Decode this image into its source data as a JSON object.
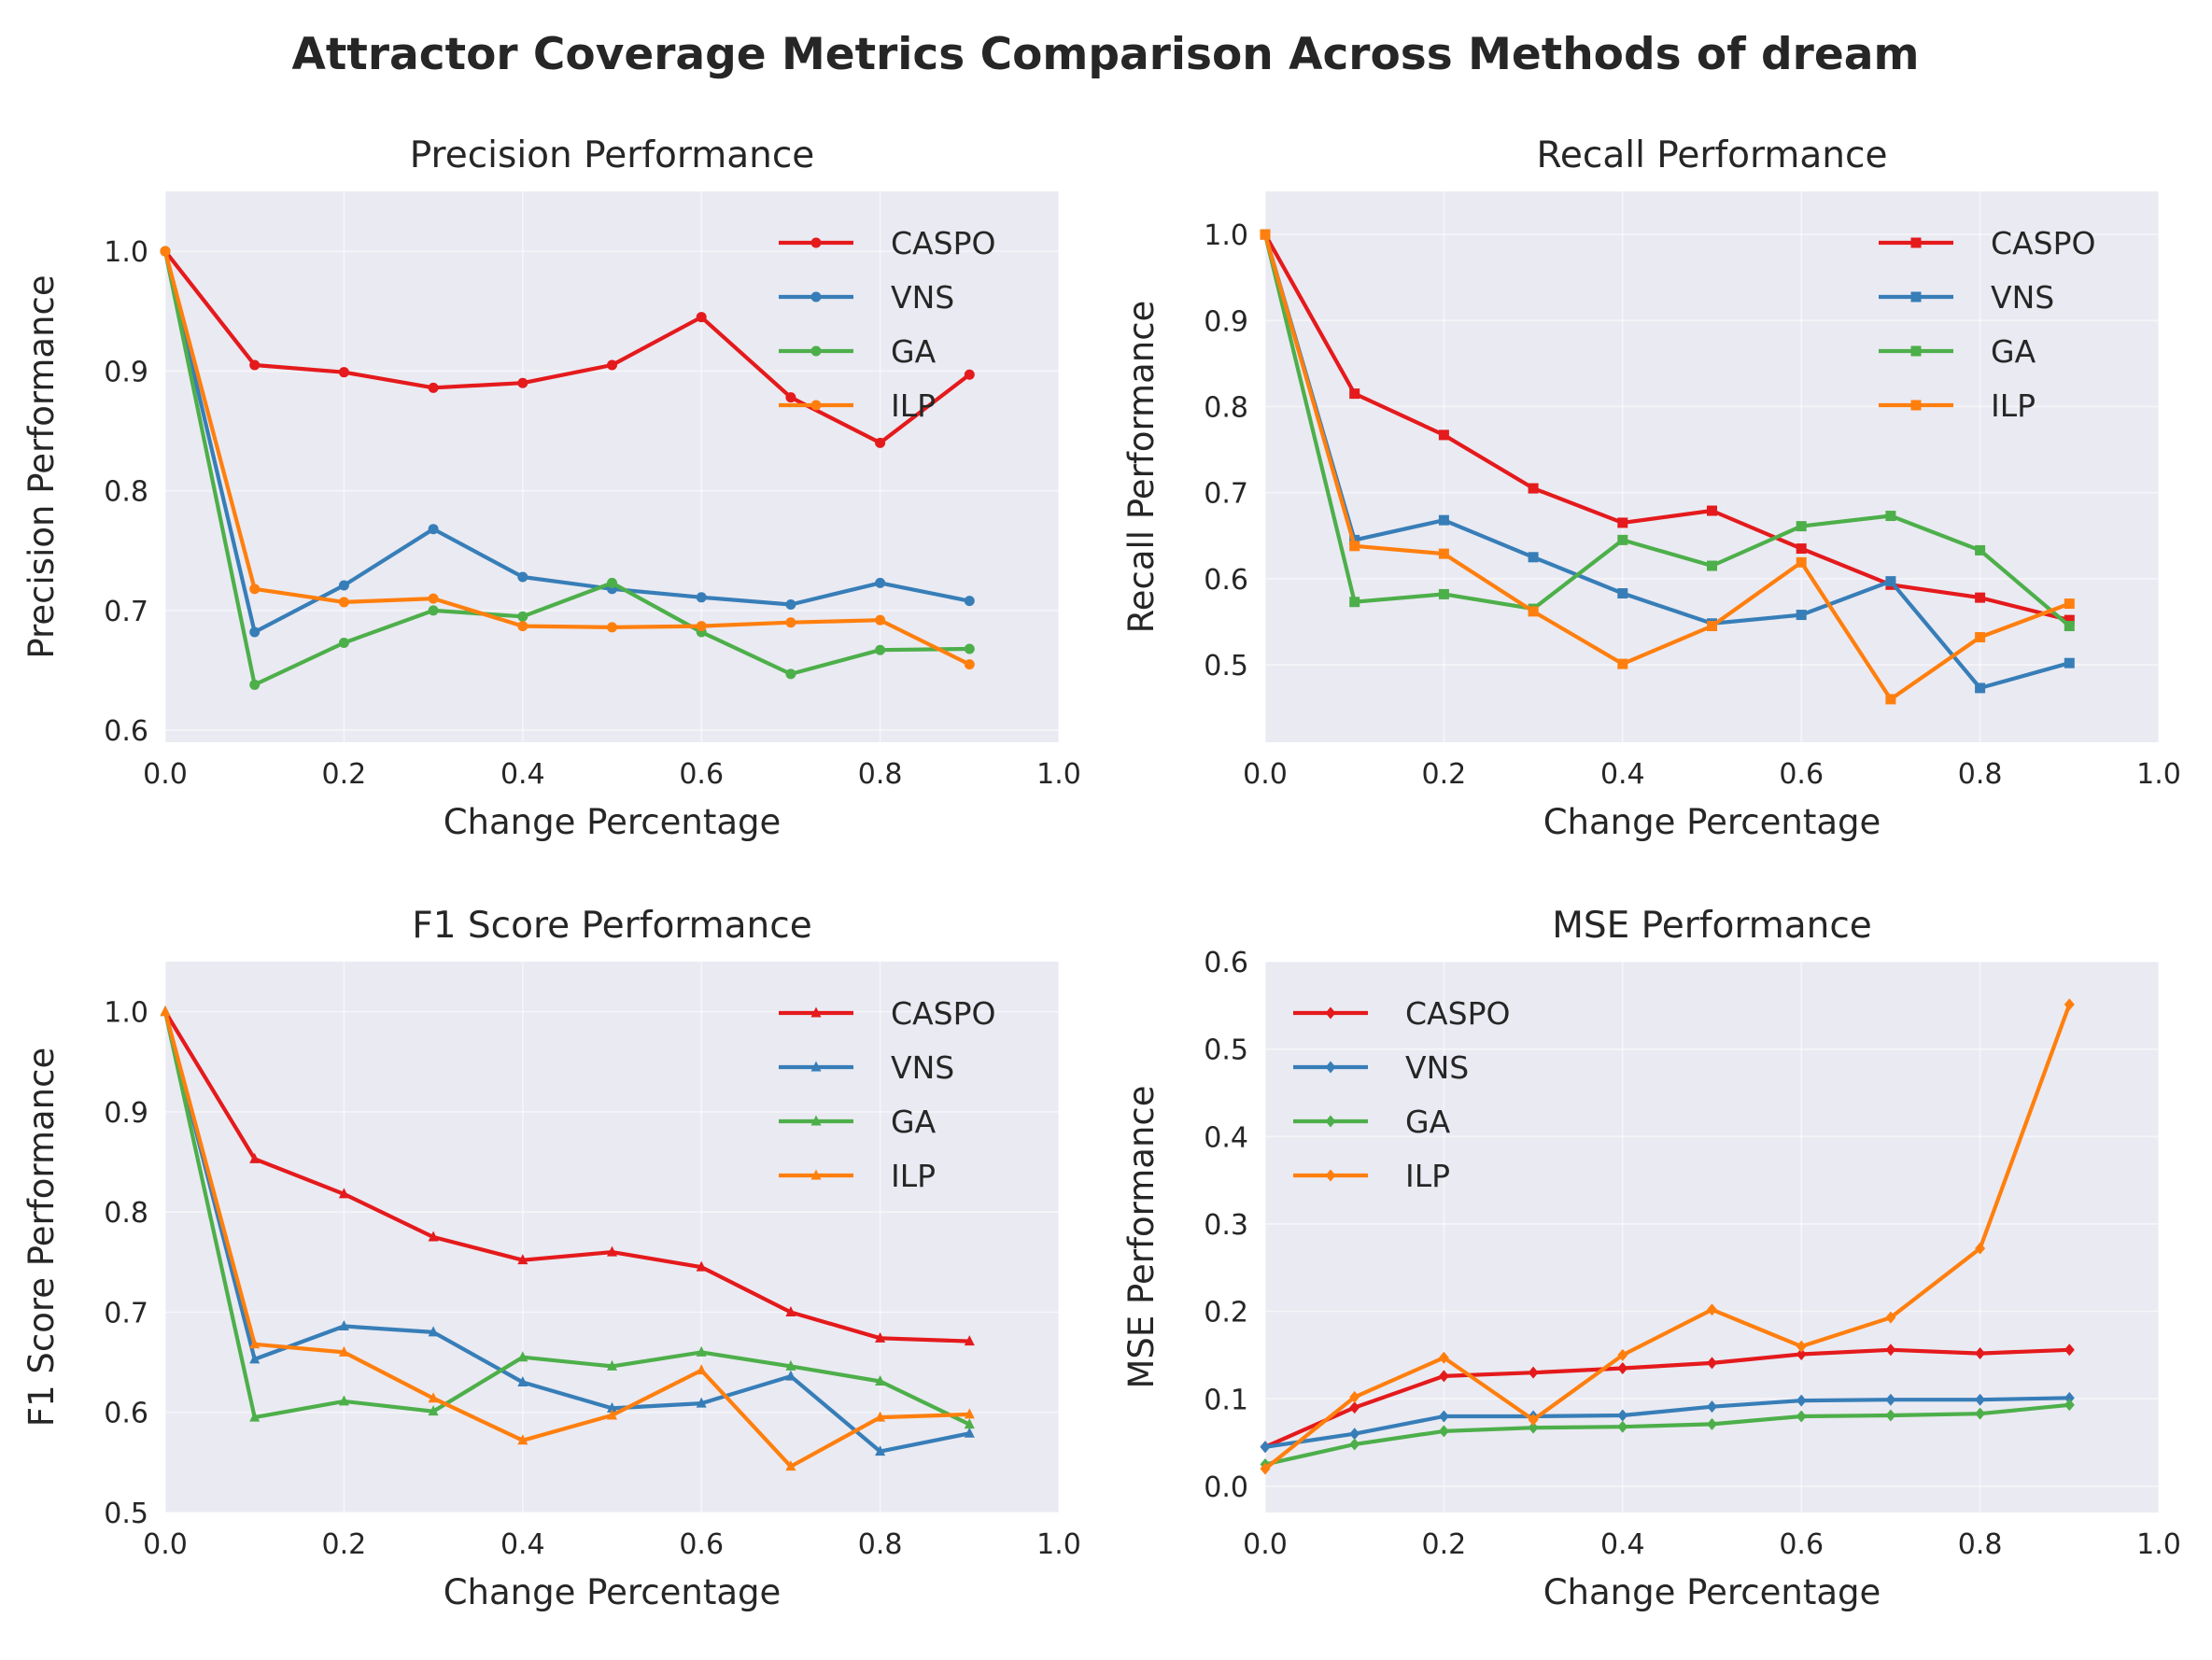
{
  "title": "Attractor Coverage Metrics Comparison Across Methods of dream",
  "colors": {
    "CASPO": "#e41a1c",
    "VNS": "#377eb8",
    "GA": "#4daf4a",
    "ILP": "#ff7f0e"
  },
  "chart_data": [
    {
      "type": "line",
      "title": "Precision Performance",
      "xlabel": "Change Percentage",
      "ylabel": "Precision Performance",
      "marker": "circle",
      "legend": "top-right",
      "grid": true,
      "xlim": [
        0,
        1.0
      ],
      "ylim": [
        0.59,
        1.05
      ],
      "xticks": [
        "0.0",
        "0.2",
        "0.4",
        "0.6",
        "0.8",
        "1.0"
      ],
      "yticks": [
        "0.6",
        "0.7",
        "0.8",
        "0.9",
        "1.0"
      ],
      "x": [
        0.0,
        0.1,
        0.2,
        0.3,
        0.4,
        0.5,
        0.6,
        0.7,
        0.8,
        0.9
      ],
      "series": [
        {
          "name": "CASPO",
          "values": [
            1.0,
            0.905,
            0.899,
            0.886,
            0.89,
            0.905,
            0.945,
            0.878,
            0.84,
            0.897
          ]
        },
        {
          "name": "VNS",
          "values": [
            1.0,
            0.682,
            0.721,
            0.768,
            0.728,
            0.718,
            0.711,
            0.705,
            0.723,
            0.708
          ]
        },
        {
          "name": "GA",
          "values": [
            1.0,
            0.638,
            0.673,
            0.7,
            0.695,
            0.723,
            0.682,
            0.647,
            0.667,
            0.668
          ]
        },
        {
          "name": "ILP",
          "values": [
            1.0,
            0.718,
            0.707,
            0.71,
            0.687,
            0.686,
            0.687,
            0.69,
            0.692,
            0.655
          ]
        }
      ]
    },
    {
      "type": "line",
      "title": "Recall Performance",
      "xlabel": "Change Percentage",
      "ylabel": "Recall Performance",
      "marker": "square",
      "legend": "top-right",
      "grid": true,
      "xlim": [
        0,
        1.0
      ],
      "ylim": [
        0.41,
        1.05
      ],
      "xticks": [
        "0.0",
        "0.2",
        "0.4",
        "0.6",
        "0.8",
        "1.0"
      ],
      "yticks": [
        "0.5",
        "0.6",
        "0.7",
        "0.8",
        "0.9",
        "1.0"
      ],
      "x": [
        0.0,
        0.1,
        0.2,
        0.3,
        0.4,
        0.5,
        0.6,
        0.7,
        0.8,
        0.9
      ],
      "series": [
        {
          "name": "CASPO",
          "values": [
            1.0,
            0.815,
            0.767,
            0.705,
            0.665,
            0.679,
            0.635,
            0.593,
            0.578,
            0.552
          ]
        },
        {
          "name": "VNS",
          "values": [
            1.0,
            0.645,
            0.668,
            0.625,
            0.583,
            0.548,
            0.558,
            0.597,
            0.473,
            0.502
          ]
        },
        {
          "name": "GA",
          "values": [
            1.0,
            0.573,
            0.582,
            0.565,
            0.645,
            0.615,
            0.661,
            0.673,
            0.633,
            0.545
          ]
        },
        {
          "name": "ILP",
          "values": [
            1.0,
            0.638,
            0.629,
            0.562,
            0.501,
            0.545,
            0.619,
            0.46,
            0.532,
            0.571
          ]
        }
      ]
    },
    {
      "type": "line",
      "title": "F1 Score Performance",
      "xlabel": "Change Percentage",
      "ylabel": "F1 Score Performance",
      "marker": "triangle",
      "legend": "top-right",
      "grid": true,
      "xlim": [
        0,
        1.0
      ],
      "ylim": [
        0.5,
        1.05
      ],
      "xticks": [
        "0.0",
        "0.2",
        "0.4",
        "0.6",
        "0.8",
        "1.0"
      ],
      "yticks": [
        "0.5",
        "0.6",
        "0.7",
        "0.8",
        "0.9",
        "1.0"
      ],
      "x": [
        0.0,
        0.1,
        0.2,
        0.3,
        0.4,
        0.5,
        0.6,
        0.7,
        0.8,
        0.9
      ],
      "series": [
        {
          "name": "CASPO",
          "values": [
            1.0,
            0.853,
            0.818,
            0.775,
            0.752,
            0.76,
            0.745,
            0.7,
            0.674,
            0.671
          ]
        },
        {
          "name": "VNS",
          "values": [
            1.0,
            0.653,
            0.686,
            0.68,
            0.63,
            0.604,
            0.609,
            0.636,
            0.561,
            0.579
          ]
        },
        {
          "name": "GA",
          "values": [
            1.0,
            0.595,
            0.611,
            0.601,
            0.655,
            0.646,
            0.66,
            0.646,
            0.631,
            0.588
          ]
        },
        {
          "name": "ILP",
          "values": [
            1.0,
            0.668,
            0.66,
            0.614,
            0.572,
            0.597,
            0.642,
            0.546,
            0.595,
            0.598
          ]
        }
      ]
    },
    {
      "type": "line",
      "title": "MSE Performance",
      "xlabel": "Change Percentage",
      "ylabel": "MSE Performance",
      "marker": "diamond",
      "legend": "top-left",
      "grid": true,
      "xlim": [
        0,
        1.0
      ],
      "ylim": [
        -0.03,
        0.6
      ],
      "xticks": [
        "0.0",
        "0.2",
        "0.4",
        "0.6",
        "0.8",
        "1.0"
      ],
      "yticks": [
        "0.0",
        "0.1",
        "0.2",
        "0.3",
        "0.4",
        "0.5",
        "0.6"
      ],
      "x": [
        0.0,
        0.1,
        0.2,
        0.3,
        0.4,
        0.5,
        0.6,
        0.7,
        0.8,
        0.9
      ],
      "series": [
        {
          "name": "CASPO",
          "values": [
            0.045,
            0.09,
            0.126,
            0.13,
            0.135,
            0.141,
            0.151,
            0.156,
            0.152,
            0.156
          ]
        },
        {
          "name": "VNS",
          "values": [
            0.045,
            0.06,
            0.08,
            0.08,
            0.081,
            0.091,
            0.098,
            0.099,
            0.099,
            0.101
          ]
        },
        {
          "name": "GA",
          "values": [
            0.025,
            0.048,
            0.063,
            0.067,
            0.068,
            0.071,
            0.08,
            0.081,
            0.083,
            0.093
          ]
        },
        {
          "name": "ILP",
          "values": [
            0.02,
            0.102,
            0.147,
            0.076,
            0.15,
            0.202,
            0.16,
            0.193,
            0.272,
            0.551
          ]
        }
      ]
    }
  ]
}
